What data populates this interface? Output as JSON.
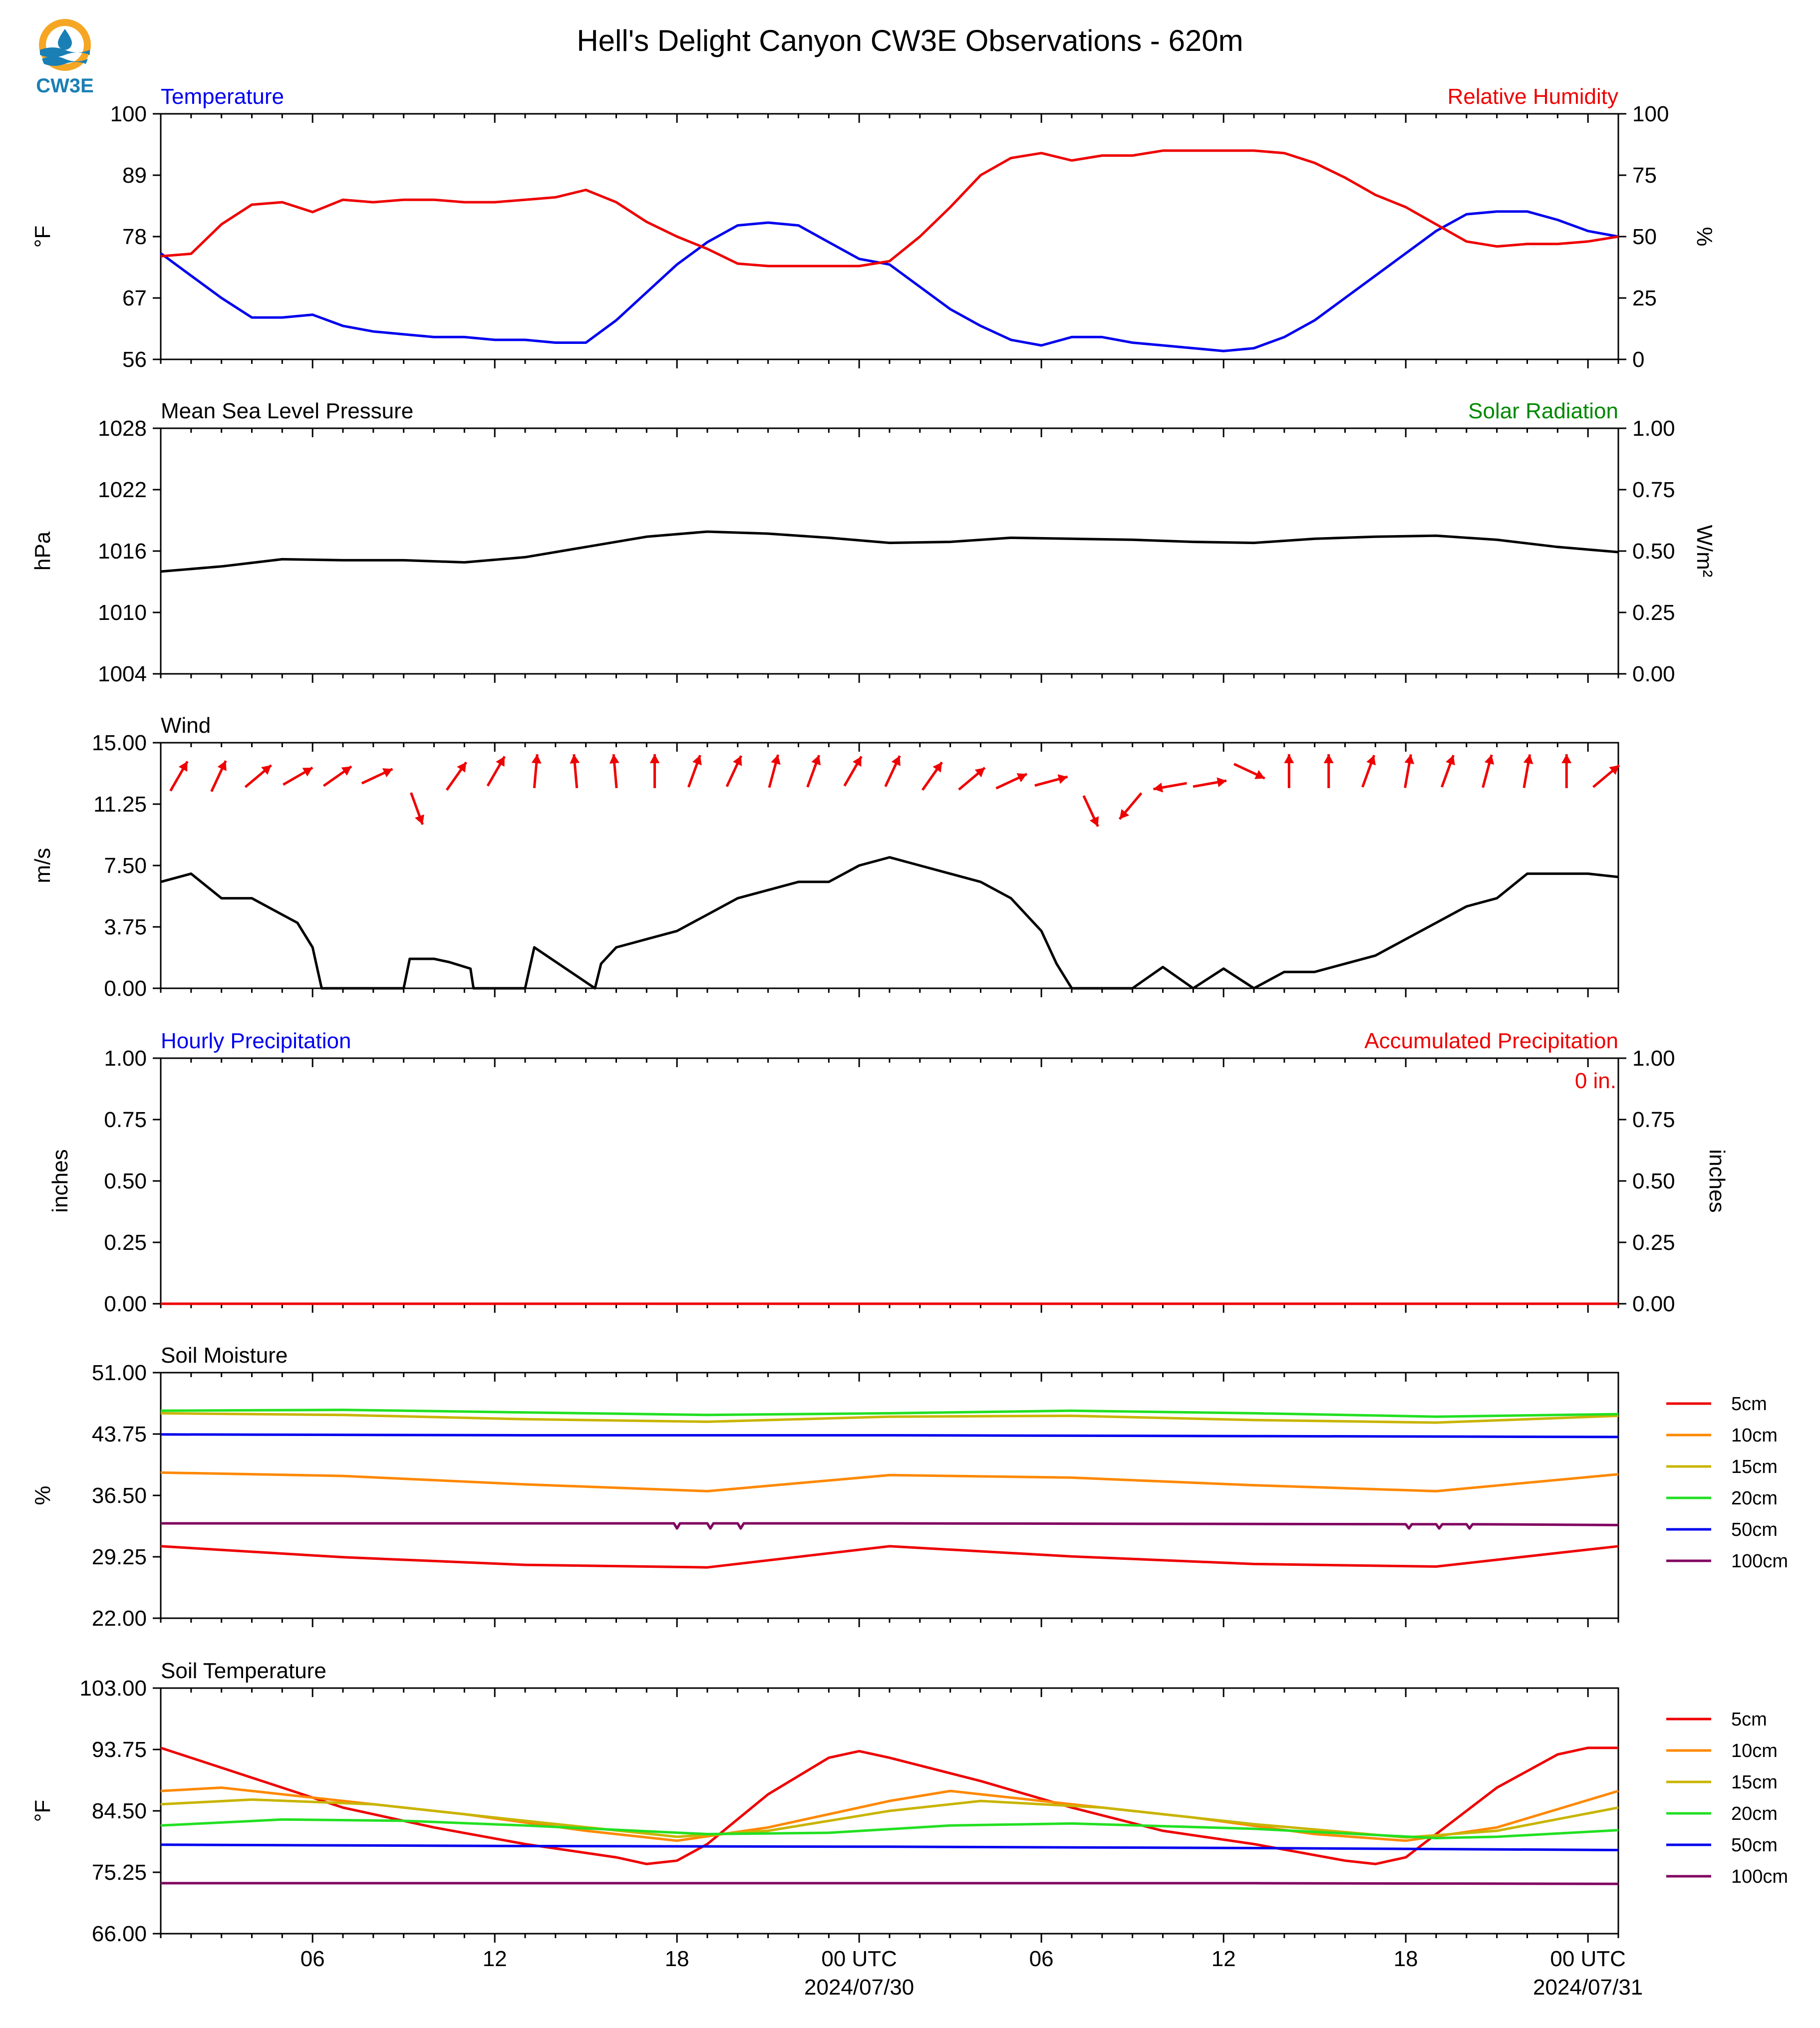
{
  "page": {
    "title": "Hell's Delight Canyon CW3E Observations - 620m",
    "logo_text": "CW3E"
  },
  "x_axis": {
    "range_hours": [
      0,
      48
    ],
    "ticks": [
      {
        "h": 5,
        "label": "06"
      },
      {
        "h": 11,
        "label": "12"
      },
      {
        "h": 17,
        "label": "18"
      },
      {
        "h": 23,
        "label": "00 UTC",
        "sub": "2024/07/30"
      },
      {
        "h": 29,
        "label": "06"
      },
      {
        "h": 35,
        "label": "12"
      },
      {
        "h": 41,
        "label": "18"
      },
      {
        "h": 47,
        "label": "00 UTC",
        "sub": "2024/07/31"
      }
    ]
  },
  "chart_data": [
    {
      "type": "line",
      "title_left": "Temperature",
      "title_right": "Relative Humidity",
      "ylabel": "°F",
      "ylabel_right": "%",
      "ylim": [
        56,
        100
      ],
      "yticks": [
        "56",
        "67",
        "78",
        "89",
        "100"
      ],
      "ylim_right": [
        0,
        100
      ],
      "yticks_right": [
        "0",
        "25",
        "50",
        "75",
        "100"
      ],
      "series": [
        {
          "name": "Temperature",
          "color": "#0000ee",
          "axis": "left",
          "x": [
            0,
            1,
            2,
            3,
            4,
            5,
            6,
            7,
            8,
            9,
            10,
            11,
            12,
            13,
            14,
            15,
            16,
            17,
            18,
            19,
            20,
            21,
            22,
            23,
            24,
            25,
            26,
            27,
            28,
            29,
            30,
            31,
            32,
            33,
            34,
            35,
            36,
            37,
            38,
            39,
            40,
            41,
            42,
            43,
            44,
            45,
            46,
            47,
            48
          ],
          "y": [
            75,
            71,
            67,
            63.5,
            63.5,
            64,
            62,
            61,
            60.5,
            60,
            60,
            59.5,
            59.5,
            59,
            59,
            63,
            68,
            73,
            77,
            80,
            80.5,
            80,
            77,
            74,
            73,
            69,
            65,
            62,
            59.5,
            58.5,
            60,
            60,
            59,
            58.5,
            58,
            57.5,
            58,
            60,
            63,
            67,
            71,
            75,
            79,
            82,
            82.5,
            82.5,
            81,
            79,
            78
          ]
        },
        {
          "name": "Relative Humidity",
          "color": "#ee0000",
          "axis": "right",
          "x": [
            0,
            1,
            2,
            3,
            4,
            5,
            6,
            7,
            8,
            9,
            10,
            11,
            12,
            13,
            14,
            15,
            16,
            17,
            18,
            19,
            20,
            21,
            22,
            23,
            24,
            25,
            26,
            27,
            28,
            29,
            30,
            31,
            32,
            33,
            34,
            35,
            36,
            37,
            38,
            39,
            40,
            41,
            42,
            43,
            44,
            45,
            46,
            47,
            48
          ],
          "y": [
            42,
            43,
            55,
            63,
            64,
            60,
            65,
            64,
            65,
            65,
            64,
            64,
            65,
            66,
            69,
            64,
            56,
            50,
            45,
            39,
            38,
            38,
            38,
            38,
            40,
            50,
            62,
            75,
            82,
            84,
            81,
            83,
            83,
            85,
            85,
            85,
            85,
            84,
            80,
            74,
            67,
            62,
            55,
            48,
            46,
            47,
            47,
            48,
            50
          ]
        }
      ]
    },
    {
      "type": "line",
      "title_left": "Mean Sea Level Pressure",
      "title_right": "Solar Radiation",
      "ylabel": "hPa",
      "ylabel_right": "W/m²",
      "ylim": [
        1004,
        1028
      ],
      "yticks": [
        "1004",
        "1010",
        "1016",
        "1022",
        "1028"
      ],
      "ylim_right": [
        0,
        1
      ],
      "yticks_right": [
        "0.00",
        "0.25",
        "0.50",
        "0.75",
        "1.00"
      ],
      "series": [
        {
          "name": "Mean Sea Level Pressure",
          "color": "#000000",
          "axis": "left",
          "x": [
            0,
            2,
            4,
            6,
            8,
            10,
            12,
            14,
            16,
            18,
            20,
            22,
            24,
            26,
            28,
            30,
            32,
            34,
            36,
            38,
            40,
            42,
            44,
            46,
            48
          ],
          "y": [
            1014,
            1014.5,
            1015.2,
            1015.1,
            1015.1,
            1014.9,
            1015.4,
            1016.4,
            1017.4,
            1017.9,
            1017.7,
            1017.3,
            1016.8,
            1016.9,
            1017.3,
            1017.2,
            1017.1,
            1016.9,
            1016.8,
            1017.2,
            1017.4,
            1017.5,
            1017.1,
            1016.4,
            1015.9
          ]
        }
      ]
    },
    {
      "type": "line",
      "title_left": "Wind",
      "ylabel": "m/s",
      "ylim": [
        0,
        15
      ],
      "yticks": [
        "0.00",
        "3.75",
        "7.50",
        "11.25",
        "15.00"
      ],
      "series": [
        {
          "name": "Wind",
          "color": "#000000",
          "axis": "left",
          "x": [
            0,
            1,
            2,
            3,
            4,
            4.5,
            5,
            5.3,
            8,
            8.2,
            9,
            9.5,
            10.2,
            10.3,
            12,
            12.3,
            14.3,
            14.5,
            15,
            16,
            17,
            18,
            19,
            20,
            21,
            22,
            23,
            24,
            25,
            26,
            27,
            28,
            29,
            29.5,
            30,
            30.5,
            31,
            31.5,
            32,
            33,
            34,
            35,
            36,
            37,
            38,
            39,
            40,
            41,
            42,
            43,
            44,
            45,
            46,
            47,
            48
          ],
          "y": [
            6.5,
            7,
            5.5,
            5.5,
            4.5,
            4,
            2.5,
            0,
            0,
            1.8,
            1.8,
            1.6,
            1.2,
            0,
            0,
            2.5,
            0,
            1.5,
            2.5,
            3,
            3.5,
            4.5,
            5.5,
            6,
            6.5,
            6.5,
            7.5,
            8,
            7.5,
            7,
            6.5,
            5.5,
            3.5,
            1.5,
            0,
            0,
            0,
            0,
            0,
            1.3,
            0,
            1.2,
            0,
            1,
            1,
            1.5,
            2,
            3,
            4,
            5,
            5.5,
            7,
            7,
            7,
            6.8
          ]
        }
      ],
      "wind_directions_deg": [
        210,
        205,
        230,
        240,
        235,
        245,
        340,
        215,
        210,
        185,
        175,
        175,
        180,
        200,
        205,
        195,
        200,
        210,
        205,
        215,
        230,
        245,
        255,
        335,
        40,
        80,
        260,
        295,
        180,
        180,
        200,
        190,
        200,
        195,
        190,
        180,
        230
      ]
    },
    {
      "type": "bar",
      "title_left": "Hourly Precipitation",
      "title_right": "Accumulated Precipitation",
      "ylabel": "inches",
      "ylabel_right": "inches",
      "ylim": [
        0,
        1
      ],
      "yticks": [
        "0.00",
        "0.25",
        "0.50",
        "0.75",
        "1.00"
      ],
      "ylim_right": [
        0,
        1
      ],
      "yticks_right": [
        "0.00",
        "0.25",
        "0.50",
        "0.75",
        "1.00"
      ],
      "annotation": "0 in.",
      "series": [
        {
          "name": "Hourly Precipitation",
          "color": "#0000ee",
          "axis": "left",
          "x": [
            0,
            48
          ],
          "y": [
            0,
            0
          ]
        },
        {
          "name": "Accumulated Precipitation",
          "color": "#ee0000",
          "axis": "right",
          "x": [
            0,
            48
          ],
          "y": [
            0,
            0
          ]
        }
      ]
    },
    {
      "type": "line",
      "title_left": "Soil Moisture",
      "ylabel": "%",
      "ylim": [
        22,
        51
      ],
      "yticks": [
        "22.00",
        "29.25",
        "36.50",
        "43.75",
        "51.00"
      ],
      "legend": "right",
      "series": [
        {
          "name": "5cm",
          "color": "#ee0000",
          "x": [
            0,
            6,
            12,
            18,
            24,
            30,
            36,
            42,
            48
          ],
          "y": [
            30.5,
            29.2,
            28.3,
            28.0,
            30.5,
            29.3,
            28.4,
            28.1,
            30.5
          ]
        },
        {
          "name": "10cm",
          "color": "#ff8800",
          "x": [
            0,
            6,
            12,
            18,
            24,
            30,
            36,
            42,
            48
          ],
          "y": [
            39.2,
            38.8,
            37.8,
            37.0,
            38.9,
            38.6,
            37.7,
            37.0,
            39.0
          ]
        },
        {
          "name": "15cm",
          "color": "#c8b400",
          "x": [
            0,
            6,
            12,
            18,
            24,
            30,
            36,
            42,
            48
          ],
          "y": [
            46.2,
            46.0,
            45.5,
            45.2,
            45.8,
            45.9,
            45.4,
            45.1,
            45.9
          ]
        },
        {
          "name": "20cm",
          "color": "#22e022",
          "x": [
            0,
            6,
            12,
            18,
            24,
            30,
            36,
            42,
            48
          ],
          "y": [
            46.5,
            46.6,
            46.3,
            46.0,
            46.2,
            46.5,
            46.2,
            45.8,
            46.1
          ]
        },
        {
          "name": "50cm",
          "color": "#0000ee",
          "x": [
            0,
            12,
            24,
            36,
            48
          ],
          "y": [
            43.7,
            43.6,
            43.6,
            43.5,
            43.4
          ]
        },
        {
          "name": "100cm",
          "color": "#800060",
          "x": [
            0,
            16.9,
            17,
            17.1,
            18,
            18.1,
            18.2,
            19,
            19.1,
            19.2,
            24,
            41,
            41.1,
            41.2,
            42,
            42.1,
            42.2,
            43,
            43.1,
            43.2,
            48
          ],
          "y": [
            33.2,
            33.2,
            32.6,
            33.2,
            33.2,
            32.6,
            33.2,
            33.2,
            32.6,
            33.2,
            33.2,
            33.1,
            32.6,
            33.1,
            33.1,
            32.6,
            33.1,
            33.1,
            32.6,
            33.1,
            33.0
          ]
        }
      ]
    },
    {
      "type": "line",
      "title_left": "Soil Temperature",
      "ylabel": "°F",
      "ylim": [
        66,
        103
      ],
      "yticks": [
        "66.00",
        "75.25",
        "84.50",
        "93.75",
        "103.00"
      ],
      "legend": "right",
      "series": [
        {
          "name": "5cm",
          "color": "#ee0000",
          "x": [
            0,
            3,
            6,
            9,
            12,
            15,
            16,
            17,
            18,
            20,
            22,
            23,
            24,
            27,
            30,
            33,
            36,
            39,
            40,
            41,
            42,
            44,
            46,
            47,
            48
          ],
          "y": [
            94,
            89.5,
            85,
            82,
            79.5,
            77.5,
            76.5,
            77,
            79.5,
            87,
            92.5,
            93.5,
            92.5,
            89,
            85,
            81.5,
            79.5,
            77,
            76.5,
            77.5,
            81,
            88,
            93,
            94,
            94
          ]
        },
        {
          "name": "10cm",
          "color": "#ff8800",
          "x": [
            0,
            2,
            6,
            10,
            14,
            17,
            20,
            24,
            26,
            30,
            34,
            38,
            41,
            44,
            48
          ],
          "y": [
            87.5,
            88,
            86,
            84,
            81.5,
            80,
            82,
            86,
            87.5,
            85.5,
            83.5,
            81,
            80,
            82,
            87.5
          ]
        },
        {
          "name": "15cm",
          "color": "#c8b400",
          "x": [
            0,
            3,
            7,
            12,
            17,
            20,
            24,
            27,
            31,
            36,
            41,
            44,
            48
          ],
          "y": [
            85.5,
            86.2,
            85.5,
            83,
            80.6,
            81.5,
            84.5,
            86,
            85,
            82.5,
            80.5,
            81.5,
            85
          ]
        },
        {
          "name": "20cm",
          "color": "#22e022",
          "x": [
            0,
            4,
            8,
            12,
            18,
            22,
            26,
            30,
            36,
            42,
            44,
            48
          ],
          "y": [
            82.3,
            83.2,
            83,
            82.3,
            81,
            81.2,
            82.3,
            82.6,
            81.8,
            80.4,
            80.6,
            81.6
          ]
        },
        {
          "name": "50cm",
          "color": "#0000ee",
          "x": [
            0,
            12,
            24,
            36,
            48
          ],
          "y": [
            79.4,
            79.2,
            79.1,
            78.9,
            78.6
          ]
        },
        {
          "name": "100cm",
          "color": "#800060",
          "x": [
            0,
            12,
            24,
            36,
            48
          ],
          "y": [
            73.6,
            73.6,
            73.6,
            73.6,
            73.5
          ]
        }
      ]
    }
  ],
  "style": {
    "blue": "#0000ee",
    "red": "#ee0000",
    "green": "#008800",
    "black": "#000000",
    "logo_blue": "#1a7fb4",
    "logo_orange": "#f5a623"
  }
}
